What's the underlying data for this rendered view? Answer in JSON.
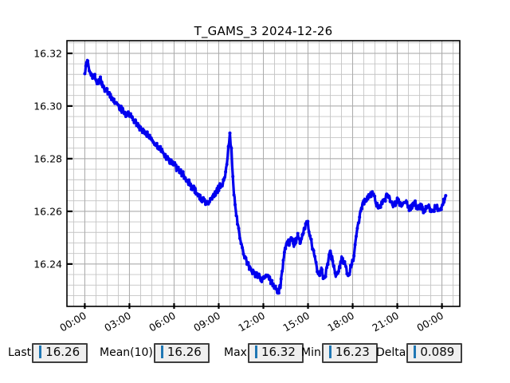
{
  "window": {
    "background": "#ffffff"
  },
  "chart_data": {
    "type": "line",
    "title": "T_GAMS_3 2024-12-26",
    "xlabel": "",
    "ylabel": "",
    "legend": "none",
    "grid": "on",
    "x_tick_hours": [
      0,
      3,
      6,
      9,
      12,
      15,
      18,
      21,
      24
    ],
    "x_tick_labels": [
      "00:00",
      "03:00",
      "06:00",
      "09:00",
      "12:00",
      "15:00",
      "18:00",
      "21:00",
      "00:00"
    ],
    "y_tick_values": [
      16.32,
      16.3,
      16.28,
      16.26,
      16.24
    ],
    "y_tick_labels": [
      "16.32",
      "16.30",
      "16.28",
      "16.26",
      "16.24"
    ],
    "xlim_hours": [
      -1.2,
      25.2
    ],
    "ylim": [
      16.2239,
      16.3248
    ],
    "x_minor_step_hours": 0.75,
    "y_minor_step": 0.004,
    "noise_amplitude": 0.0012,
    "value_range": {
      "min": 16.229,
      "max": 16.318
    },
    "series": [
      {
        "name": "T_GAMS_3",
        "color": "#0000ee",
        "marker": "circle",
        "points": [
          [
            0.0,
            16.312
          ],
          [
            0.1,
            16.317
          ],
          [
            0.2,
            16.318
          ],
          [
            0.3,
            16.314
          ],
          [
            0.45,
            16.311
          ],
          [
            0.6,
            16.312
          ],
          [
            0.75,
            16.31
          ],
          [
            0.9,
            16.309
          ],
          [
            1.05,
            16.31
          ],
          [
            1.2,
            16.308
          ],
          [
            1.35,
            16.306
          ],
          [
            1.5,
            16.306
          ],
          [
            1.65,
            16.304
          ],
          [
            1.8,
            16.303
          ],
          [
            2.0,
            16.302
          ],
          [
            2.2,
            16.3
          ],
          [
            2.4,
            16.299
          ],
          [
            2.6,
            16.298
          ],
          [
            2.8,
            16.297
          ],
          [
            3.0,
            16.297
          ],
          [
            3.2,
            16.295
          ],
          [
            3.4,
            16.294
          ],
          [
            3.6,
            16.292
          ],
          [
            3.8,
            16.291
          ],
          [
            4.0,
            16.29
          ],
          [
            4.2,
            16.289
          ],
          [
            4.4,
            16.288
          ],
          [
            4.6,
            16.286
          ],
          [
            4.8,
            16.285
          ],
          [
            5.0,
            16.284
          ],
          [
            5.2,
            16.283
          ],
          [
            5.4,
            16.281
          ],
          [
            5.6,
            16.28
          ],
          [
            5.8,
            16.279
          ],
          [
            6.0,
            16.278
          ],
          [
            6.2,
            16.276
          ],
          [
            6.4,
            16.275
          ],
          [
            6.6,
            16.274
          ],
          [
            6.8,
            16.272
          ],
          [
            7.0,
            16.271
          ],
          [
            7.2,
            16.269
          ],
          [
            7.4,
            16.268
          ],
          [
            7.6,
            16.266
          ],
          [
            7.8,
            16.265
          ],
          [
            8.0,
            16.264
          ],
          [
            8.2,
            16.263
          ],
          [
            8.4,
            16.264
          ],
          [
            8.6,
            16.266
          ],
          [
            8.8,
            16.267
          ],
          [
            9.0,
            16.269
          ],
          [
            9.2,
            16.27
          ],
          [
            9.35,
            16.272
          ],
          [
            9.5,
            16.276
          ],
          [
            9.6,
            16.28
          ],
          [
            9.7,
            16.287
          ],
          [
            9.75,
            16.289
          ],
          [
            9.85,
            16.283
          ],
          [
            9.95,
            16.272
          ],
          [
            10.1,
            16.262
          ],
          [
            10.3,
            16.254
          ],
          [
            10.5,
            16.248
          ],
          [
            10.7,
            16.244
          ],
          [
            10.9,
            16.241
          ],
          [
            11.1,
            16.238
          ],
          [
            11.3,
            16.237
          ],
          [
            11.5,
            16.236
          ],
          [
            11.7,
            16.235
          ],
          [
            11.9,
            16.234
          ],
          [
            12.1,
            16.235
          ],
          [
            12.3,
            16.236
          ],
          [
            12.5,
            16.233
          ],
          [
            12.7,
            16.232
          ],
          [
            12.85,
            16.23
          ],
          [
            13.0,
            16.229
          ],
          [
            13.15,
            16.232
          ],
          [
            13.3,
            16.239
          ],
          [
            13.45,
            16.246
          ],
          [
            13.6,
            16.249
          ],
          [
            13.75,
            16.248
          ],
          [
            13.9,
            16.25
          ],
          [
            14.05,
            16.247
          ],
          [
            14.2,
            16.249
          ],
          [
            14.35,
            16.251
          ],
          [
            14.5,
            16.248
          ],
          [
            14.65,
            16.252
          ],
          [
            14.8,
            16.254
          ],
          [
            14.95,
            16.256
          ],
          [
            15.1,
            16.252
          ],
          [
            15.3,
            16.246
          ],
          [
            15.5,
            16.241
          ],
          [
            15.7,
            16.236
          ],
          [
            15.9,
            16.238
          ],
          [
            16.1,
            16.234
          ],
          [
            16.3,
            16.24
          ],
          [
            16.5,
            16.245
          ],
          [
            16.7,
            16.24
          ],
          [
            16.9,
            16.235
          ],
          [
            17.1,
            16.238
          ],
          [
            17.3,
            16.243
          ],
          [
            17.5,
            16.239
          ],
          [
            17.7,
            16.236
          ],
          [
            17.9,
            16.239
          ],
          [
            18.05,
            16.242
          ],
          [
            18.2,
            16.248
          ],
          [
            18.35,
            16.254
          ],
          [
            18.5,
            16.259
          ],
          [
            18.65,
            16.262
          ],
          [
            18.8,
            16.264
          ],
          [
            19.0,
            16.265
          ],
          [
            19.2,
            16.267
          ],
          [
            19.4,
            16.266
          ],
          [
            19.6,
            16.263
          ],
          [
            19.8,
            16.262
          ],
          [
            20.0,
            16.263
          ],
          [
            20.2,
            16.265
          ],
          [
            20.4,
            16.266
          ],
          [
            20.6,
            16.263
          ],
          [
            20.8,
            16.262
          ],
          [
            21.0,
            16.264
          ],
          [
            21.2,
            16.263
          ],
          [
            21.4,
            16.262
          ],
          [
            21.6,
            16.263
          ],
          [
            21.8,
            16.261
          ],
          [
            22.0,
            16.262
          ],
          [
            22.2,
            16.263
          ],
          [
            22.4,
            16.261
          ],
          [
            22.6,
            16.262
          ],
          [
            22.8,
            16.26
          ],
          [
            23.0,
            16.262
          ],
          [
            23.2,
            16.261
          ],
          [
            23.4,
            16.26
          ],
          [
            23.6,
            16.262
          ],
          [
            23.8,
            16.261
          ],
          [
            24.0,
            16.262
          ],
          [
            24.15,
            16.264
          ],
          [
            24.25,
            16.266
          ]
        ]
      }
    ]
  },
  "stats": {
    "items": [
      {
        "label": "Last",
        "value": "16.26"
      },
      {
        "label": "Mean(10)",
        "value": "16.26"
      },
      {
        "label": "Max",
        "value": "16.32"
      },
      {
        "label": "Min",
        "value": "16.23"
      },
      {
        "label": "Delta",
        "value": "0.089"
      }
    ]
  },
  "colors": {
    "series_blue": "#0000ee",
    "caret_blue": "#1f77b4",
    "grid_gray": "#c4c4c4",
    "axis_black": "#000000",
    "stat_box_bg": "#efefef",
    "stat_box_border": "#3f3f3f"
  }
}
